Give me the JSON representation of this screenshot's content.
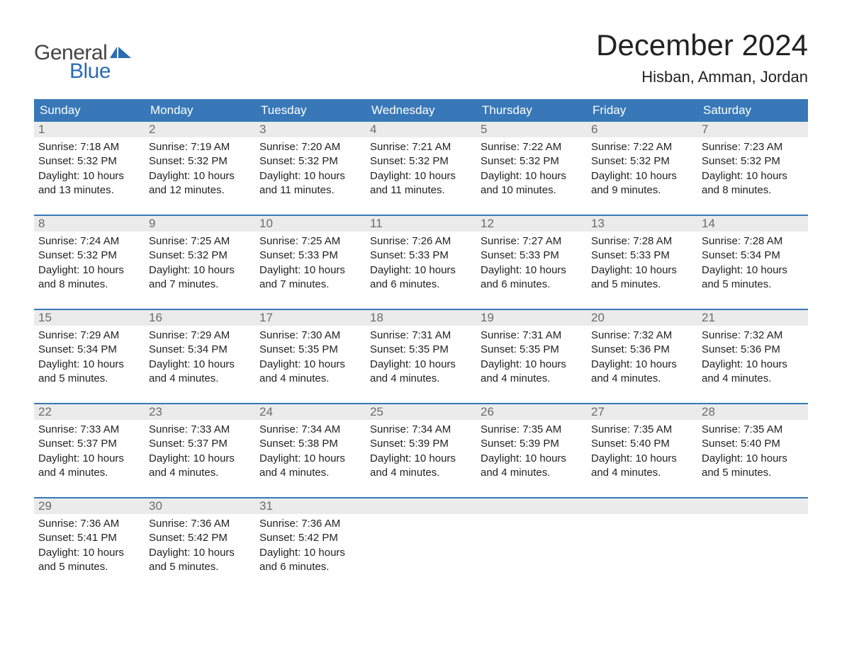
{
  "logo": {
    "text_general": "General",
    "text_blue": "Blue",
    "flag_color": "#2b6bb2"
  },
  "title": "December 2024",
  "location": "Hisban, Amman, Jordan",
  "colors": {
    "header_bg": "#3878b8",
    "header_text": "#ffffff",
    "daynum_bg": "#ebebeb",
    "daynum_text": "#6b6b6b",
    "body_text": "#222222",
    "accent": "#2b6bb2",
    "page_bg": "#ffffff"
  },
  "weekdays": [
    "Sunday",
    "Monday",
    "Tuesday",
    "Wednesday",
    "Thursday",
    "Friday",
    "Saturday"
  ],
  "weeks": [
    [
      {
        "num": "1",
        "sunrise": "Sunrise: 7:18 AM",
        "sunset": "Sunset: 5:32 PM",
        "daylight": "Daylight: 10 hours and 13 minutes."
      },
      {
        "num": "2",
        "sunrise": "Sunrise: 7:19 AM",
        "sunset": "Sunset: 5:32 PM",
        "daylight": "Daylight: 10 hours and 12 minutes."
      },
      {
        "num": "3",
        "sunrise": "Sunrise: 7:20 AM",
        "sunset": "Sunset: 5:32 PM",
        "daylight": "Daylight: 10 hours and 11 minutes."
      },
      {
        "num": "4",
        "sunrise": "Sunrise: 7:21 AM",
        "sunset": "Sunset: 5:32 PM",
        "daylight": "Daylight: 10 hours and 11 minutes."
      },
      {
        "num": "5",
        "sunrise": "Sunrise: 7:22 AM",
        "sunset": "Sunset: 5:32 PM",
        "daylight": "Daylight: 10 hours and 10 minutes."
      },
      {
        "num": "6",
        "sunrise": "Sunrise: 7:22 AM",
        "sunset": "Sunset: 5:32 PM",
        "daylight": "Daylight: 10 hours and 9 minutes."
      },
      {
        "num": "7",
        "sunrise": "Sunrise: 7:23 AM",
        "sunset": "Sunset: 5:32 PM",
        "daylight": "Daylight: 10 hours and 8 minutes."
      }
    ],
    [
      {
        "num": "8",
        "sunrise": "Sunrise: 7:24 AM",
        "sunset": "Sunset: 5:32 PM",
        "daylight": "Daylight: 10 hours and 8 minutes."
      },
      {
        "num": "9",
        "sunrise": "Sunrise: 7:25 AM",
        "sunset": "Sunset: 5:32 PM",
        "daylight": "Daylight: 10 hours and 7 minutes."
      },
      {
        "num": "10",
        "sunrise": "Sunrise: 7:25 AM",
        "sunset": "Sunset: 5:33 PM",
        "daylight": "Daylight: 10 hours and 7 minutes."
      },
      {
        "num": "11",
        "sunrise": "Sunrise: 7:26 AM",
        "sunset": "Sunset: 5:33 PM",
        "daylight": "Daylight: 10 hours and 6 minutes."
      },
      {
        "num": "12",
        "sunrise": "Sunrise: 7:27 AM",
        "sunset": "Sunset: 5:33 PM",
        "daylight": "Daylight: 10 hours and 6 minutes."
      },
      {
        "num": "13",
        "sunrise": "Sunrise: 7:28 AM",
        "sunset": "Sunset: 5:33 PM",
        "daylight": "Daylight: 10 hours and 5 minutes."
      },
      {
        "num": "14",
        "sunrise": "Sunrise: 7:28 AM",
        "sunset": "Sunset: 5:34 PM",
        "daylight": "Daylight: 10 hours and 5 minutes."
      }
    ],
    [
      {
        "num": "15",
        "sunrise": "Sunrise: 7:29 AM",
        "sunset": "Sunset: 5:34 PM",
        "daylight": "Daylight: 10 hours and 5 minutes."
      },
      {
        "num": "16",
        "sunrise": "Sunrise: 7:29 AM",
        "sunset": "Sunset: 5:34 PM",
        "daylight": "Daylight: 10 hours and 4 minutes."
      },
      {
        "num": "17",
        "sunrise": "Sunrise: 7:30 AM",
        "sunset": "Sunset: 5:35 PM",
        "daylight": "Daylight: 10 hours and 4 minutes."
      },
      {
        "num": "18",
        "sunrise": "Sunrise: 7:31 AM",
        "sunset": "Sunset: 5:35 PM",
        "daylight": "Daylight: 10 hours and 4 minutes."
      },
      {
        "num": "19",
        "sunrise": "Sunrise: 7:31 AM",
        "sunset": "Sunset: 5:35 PM",
        "daylight": "Daylight: 10 hours and 4 minutes."
      },
      {
        "num": "20",
        "sunrise": "Sunrise: 7:32 AM",
        "sunset": "Sunset: 5:36 PM",
        "daylight": "Daylight: 10 hours and 4 minutes."
      },
      {
        "num": "21",
        "sunrise": "Sunrise: 7:32 AM",
        "sunset": "Sunset: 5:36 PM",
        "daylight": "Daylight: 10 hours and 4 minutes."
      }
    ],
    [
      {
        "num": "22",
        "sunrise": "Sunrise: 7:33 AM",
        "sunset": "Sunset: 5:37 PM",
        "daylight": "Daylight: 10 hours and 4 minutes."
      },
      {
        "num": "23",
        "sunrise": "Sunrise: 7:33 AM",
        "sunset": "Sunset: 5:37 PM",
        "daylight": "Daylight: 10 hours and 4 minutes."
      },
      {
        "num": "24",
        "sunrise": "Sunrise: 7:34 AM",
        "sunset": "Sunset: 5:38 PM",
        "daylight": "Daylight: 10 hours and 4 minutes."
      },
      {
        "num": "25",
        "sunrise": "Sunrise: 7:34 AM",
        "sunset": "Sunset: 5:39 PM",
        "daylight": "Daylight: 10 hours and 4 minutes."
      },
      {
        "num": "26",
        "sunrise": "Sunrise: 7:35 AM",
        "sunset": "Sunset: 5:39 PM",
        "daylight": "Daylight: 10 hours and 4 minutes."
      },
      {
        "num": "27",
        "sunrise": "Sunrise: 7:35 AM",
        "sunset": "Sunset: 5:40 PM",
        "daylight": "Daylight: 10 hours and 4 minutes."
      },
      {
        "num": "28",
        "sunrise": "Sunrise: 7:35 AM",
        "sunset": "Sunset: 5:40 PM",
        "daylight": "Daylight: 10 hours and 5 minutes."
      }
    ],
    [
      {
        "num": "29",
        "sunrise": "Sunrise: 7:36 AM",
        "sunset": "Sunset: 5:41 PM",
        "daylight": "Daylight: 10 hours and 5 minutes."
      },
      {
        "num": "30",
        "sunrise": "Sunrise: 7:36 AM",
        "sunset": "Sunset: 5:42 PM",
        "daylight": "Daylight: 10 hours and 5 minutes."
      },
      {
        "num": "31",
        "sunrise": "Sunrise: 7:36 AM",
        "sunset": "Sunset: 5:42 PM",
        "daylight": "Daylight: 10 hours and 6 minutes."
      },
      null,
      null,
      null,
      null
    ]
  ]
}
